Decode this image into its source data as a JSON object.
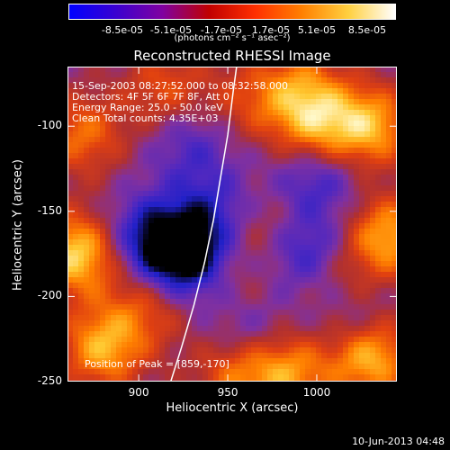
{
  "colorbar": {
    "ticks": [
      "-8.5e-05",
      "-5.1e-05",
      "-1.7e-05",
      "1.7e-05",
      "5.1e-05",
      "8.5e-05"
    ],
    "units": "(photons cm⁻² s⁻¹ asec⁻²)",
    "range": [
      -8.5e-05,
      8.5e-05
    ]
  },
  "title": "Reconstructed RHESSI Image",
  "info": {
    "line1": "15-Sep-2003 08:27:52.000 to 08:32:58.000",
    "line2": "Detectors: 4F 5F 6F 7F 8F, Att 0",
    "line3": "Energy Range: 25.0 - 50.0 keV",
    "line4": "Clean    Total counts: 4.35E+03"
  },
  "peak_label": "Position of Peak = [859,-170]",
  "date_stamp": "10-Jun-2013 04:48",
  "chart_data": {
    "type": "heatmap",
    "xlabel": "Heliocentric X (arcsec)",
    "ylabel": "Heliocentric Y (arcsec)",
    "xlim": [
      860,
      1045
    ],
    "ylim": [
      -250,
      -65
    ],
    "xticks": [
      "900",
      "950",
      "1000"
    ],
    "yticks": [
      "-100",
      "-150",
      "-200",
      "-250"
    ],
    "peak": [
      859,
      -170
    ],
    "limb_curve": [
      [
        918,
        -250
      ],
      [
        924,
        -230
      ],
      [
        931,
        -205
      ],
      [
        937,
        -180
      ],
      [
        942,
        -155
      ],
      [
        946,
        -130
      ],
      [
        950,
        -105
      ],
      [
        953,
        -80
      ],
      [
        955,
        -65
      ]
    ],
    "colormap": [
      "#000000",
      "#2020c8",
      "#5028c0",
      "#8030a0",
      "#b03030",
      "#e04010",
      "#ff8000",
      "#ffc830",
      "#ffffe0"
    ],
    "sources": [
      {
        "x": 925,
        "y": -178,
        "value": -8.5e-05
      },
      {
        "x": 905,
        "y": -165,
        "value": -5e-05
      },
      {
        "x": 940,
        "y": -150,
        "value": -4e-05
      },
      {
        "x": 995,
        "y": -175,
        "value": -5e-05
      },
      {
        "x": 1000,
        "y": -130,
        "value": -4e-05
      },
      {
        "x": 960,
        "y": -220,
        "value": -3e-05
      },
      {
        "x": 1020,
        "y": -215,
        "value": -3e-05
      },
      {
        "x": 930,
        "y": -110,
        "value": -3e-05
      },
      {
        "x": 868,
        "y": -105,
        "value": 5e-05
      },
      {
        "x": 865,
        "y": -175,
        "value": 8.5e-05
      },
      {
        "x": 880,
        "y": -230,
        "value": 7e-05
      },
      {
        "x": 905,
        "y": -205,
        "value": 4e-05
      },
      {
        "x": 915,
        "y": -78,
        "value": 4e-05
      },
      {
        "x": 990,
        "y": -78,
        "value": 5e-05
      },
      {
        "x": 1030,
        "y": -100,
        "value": 7e-05
      },
      {
        "x": 1000,
        "y": -100,
        "value": 6e-05
      },
      {
        "x": 1040,
        "y": -165,
        "value": 7e-05
      },
      {
        "x": 1030,
        "y": -235,
        "value": 8e-05
      },
      {
        "x": 985,
        "y": -245,
        "value": 6e-05
      },
      {
        "x": 955,
        "y": -245,
        "value": 5e-05
      },
      {
        "x": 960,
        "y": -85,
        "value": 3e-05
      },
      {
        "x": 970,
        "y": -160,
        "value": 2.5e-05
      },
      {
        "x": 1010,
        "y": -190,
        "value": 3e-05
      },
      {
        "x": 955,
        "y": -195,
        "value": 2e-05
      }
    ]
  }
}
